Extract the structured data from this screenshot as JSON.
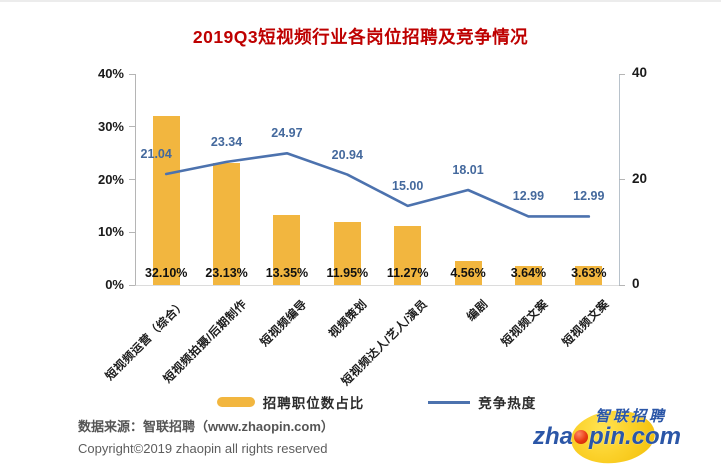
{
  "title": "2019Q3短视频行业各岗位招聘及竞争情况",
  "chart_data": {
    "type": "bar+line combo",
    "categories": [
      "短视频运营（综合）",
      "短视频拍摄/后期制作",
      "短视频编导",
      "视频策划",
      "短视频达人/艺人/演员",
      "编剧",
      "短视频文案",
      "短视频文案"
    ],
    "series": [
      {
        "name": "招聘职位数占比",
        "type": "bar",
        "axis": "left",
        "values": [
          32.1,
          23.13,
          13.35,
          11.95,
          11.27,
          4.56,
          3.64,
          3.63
        ],
        "labels": [
          "32.10%",
          "23.13%",
          "13.35%",
          "11.95%",
          "11.27%",
          "4.56%",
          "3.64%",
          "3.63%"
        ]
      },
      {
        "name": "竞争热度",
        "type": "line",
        "axis": "right",
        "values": [
          21.04,
          23.34,
          24.97,
          20.94,
          15.0,
          18.01,
          12.99,
          12.99
        ],
        "labels": [
          "21.04",
          "23.34",
          "24.97",
          "20.94",
          "15.00",
          "18.01",
          "12.99",
          "12.99"
        ]
      }
    ],
    "left_axis": {
      "ticks": [
        "0%",
        "10%",
        "20%",
        "30%",
        "40%"
      ],
      "tick_values": [
        0,
        10,
        20,
        30,
        40
      ],
      "min": 0,
      "max": 40
    },
    "right_axis": {
      "ticks": [
        "0",
        "20",
        "40"
      ],
      "tick_values": [
        0,
        20,
        40
      ],
      "min": 0,
      "max": 40
    },
    "grid": false,
    "legend_position": "bottom",
    "colors": {
      "title": "#be0000",
      "bar": "#f2b63f",
      "line": "#4c72ae",
      "bar_label": "#111111",
      "line_label": "#44699d"
    }
  },
  "legend": {
    "bar_label": "招聘职位数占比",
    "line_label": "竞争热度"
  },
  "footer": {
    "source": "数据来源：智联招聘（www.zhaopin.com）",
    "copyright": "Copyright©2019 zhaopin all rights reserved"
  },
  "logo": {
    "brand_cn": "智联招聘",
    "en_pre": "zha",
    "en_post": "pin.com"
  }
}
